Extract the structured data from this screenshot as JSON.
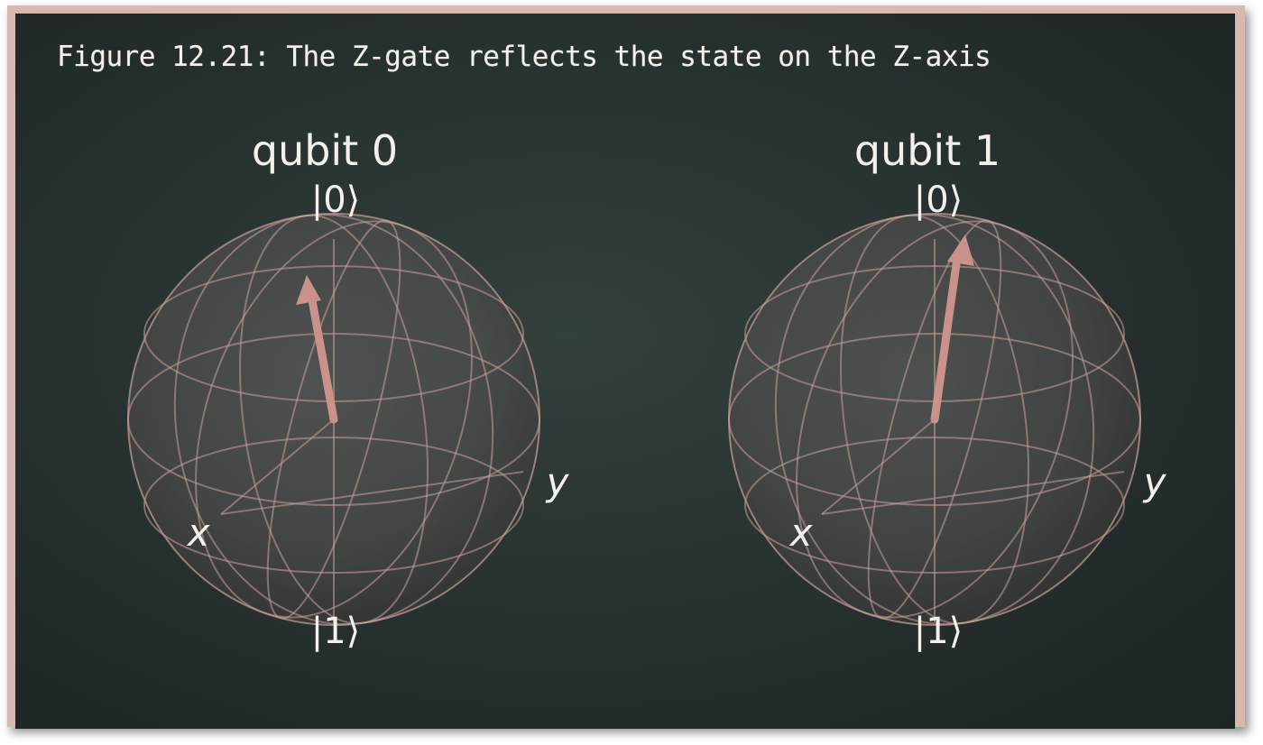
{
  "title": "Figure 12.21: The Z-gate reflects the state on the Z-axis",
  "spheres": [
    {
      "name": "qubit 0",
      "ket_top": "|0⟩",
      "ket_bottom": "|1⟩",
      "axis_x": "x",
      "axis_y": "y"
    },
    {
      "name": "qubit 1",
      "ket_top": "|0⟩",
      "ket_bottom": "|1⟩",
      "axis_x": "x",
      "axis_y": "y"
    }
  ],
  "colors": {
    "board": "#26302e",
    "frame": "#d9b8b1",
    "sphere_line": "#c8a09a",
    "arrow": "#c9928a",
    "text": "#f4f1ec"
  }
}
